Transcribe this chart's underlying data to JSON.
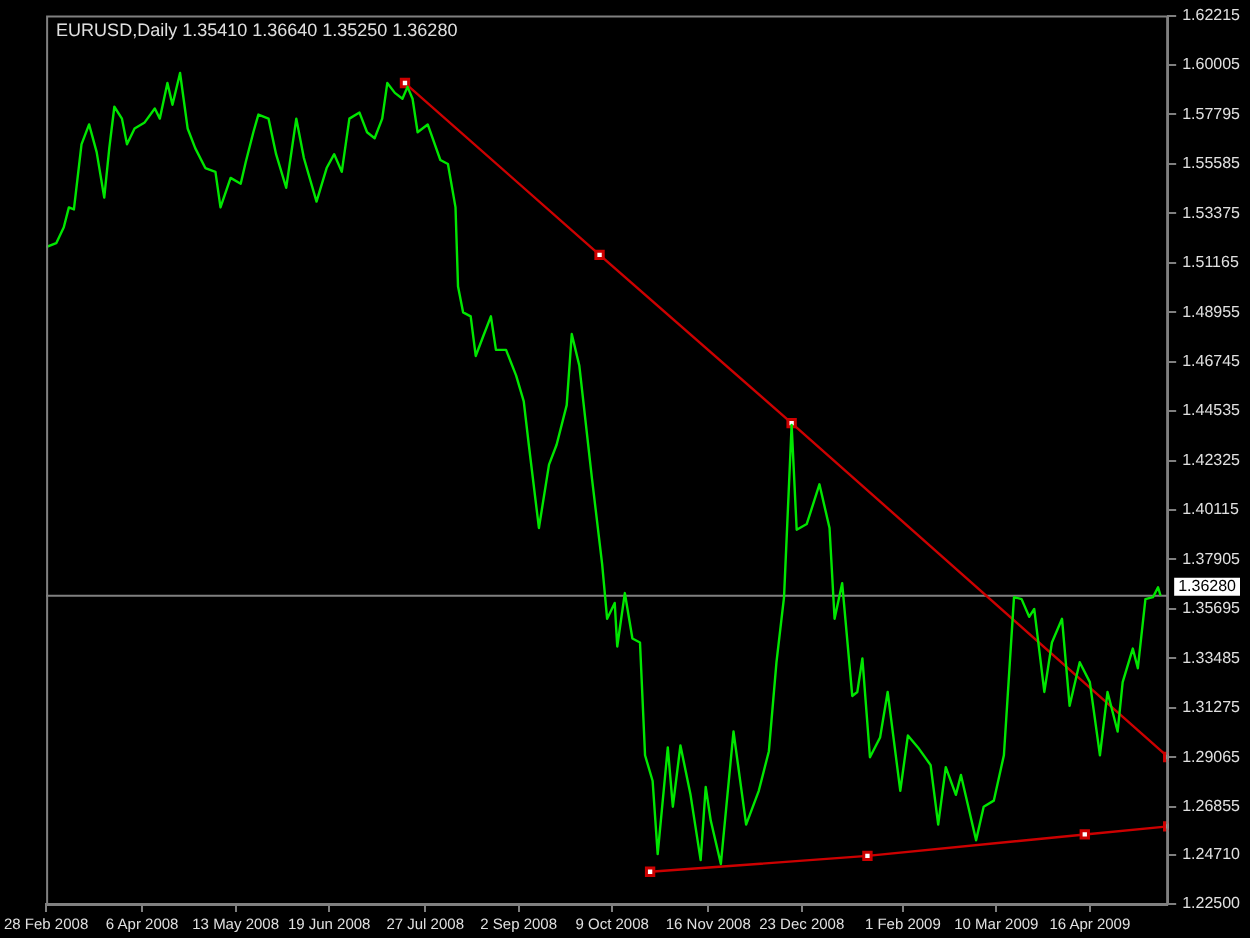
{
  "chart_data": {
    "type": "line",
    "title": "EURUSD,Daily 1.35410 1.36640 1.35250 1.36280",
    "grid": false,
    "legend": false,
    "xlim": [
      "2008-02-28",
      "2009-05-17"
    ],
    "xticks": [
      {
        "value": "2008-02-28",
        "label": "28 Feb 2008"
      },
      {
        "value": "2008-04-06",
        "label": "6 Apr 2008"
      },
      {
        "value": "2008-05-13",
        "label": "13 May 2008"
      },
      {
        "value": "2008-06-19",
        "label": "19 Jun 2008"
      },
      {
        "value": "2008-07-27",
        "label": "27 Jul 2008"
      },
      {
        "value": "2008-09-02",
        "label": "2 Sep 2008"
      },
      {
        "value": "2008-10-09",
        "label": "9 Oct 2008"
      },
      {
        "value": "2008-11-16",
        "label": "16 Nov 2008"
      },
      {
        "value": "2008-12-23",
        "label": "23 Dec 2008"
      },
      {
        "value": "2009-02-01",
        "label": "1 Feb 2009"
      },
      {
        "value": "2009-03-10",
        "label": "10 Mar 2009"
      },
      {
        "value": "2009-04-16",
        "label": "16 Apr 2009"
      }
    ],
    "ylim": [
      1.225,
      1.62215
    ],
    "yticks": [
      {
        "value": 1.225,
        "label": "1.22500"
      },
      {
        "value": 1.2471,
        "label": "1.24710"
      },
      1.26855,
      1.29065,
      1.31275,
      1.33485,
      1.35695,
      1.37905,
      1.40115,
      1.42325,
      1.44535,
      1.46745,
      1.48955,
      1.51165,
      1.53375,
      1.55585,
      1.57795,
      1.60005,
      1.62215
    ],
    "ref_lines": [
      {
        "axis": "y",
        "value": 1.3628,
        "label": "1.36280",
        "color": "#808080"
      }
    ],
    "series": [
      {
        "color": "#00e600",
        "marker": "none",
        "x": [
          "2008-02-28",
          "2008-03-03",
          "2008-03-06",
          "2008-03-08",
          "2008-03-10",
          "2008-03-13",
          "2008-03-16",
          "2008-03-19",
          "2008-03-22",
          "2008-03-24",
          "2008-03-26",
          "2008-03-29",
          "2008-03-31",
          "2008-04-03",
          "2008-04-07",
          "2008-04-11",
          "2008-04-13",
          "2008-04-16",
          "2008-04-18",
          "2008-04-21",
          "2008-04-24",
          "2008-04-27",
          "2008-05-01",
          "2008-05-05",
          "2008-05-07",
          "2008-05-11",
          "2008-05-15",
          "2008-05-17",
          "2008-05-20",
          "2008-05-22",
          "2008-05-26",
          "2008-05-29",
          "2008-06-02",
          "2008-06-06",
          "2008-06-09",
          "2008-06-14",
          "2008-06-18",
          "2008-06-21",
          "2008-06-24",
          "2008-06-27",
          "2008-07-01",
          "2008-07-04",
          "2008-07-07",
          "2008-07-10",
          "2008-07-12",
          "2008-07-15",
          "2008-07-18",
          "2008-07-20",
          "2008-07-22",
          "2008-07-24",
          "2008-07-28",
          "2008-08-02",
          "2008-08-05",
          "2008-08-08",
          "2008-08-09",
          "2008-08-11",
          "2008-08-14",
          "2008-08-16",
          "2008-08-19",
          "2008-08-22",
          "2008-08-24",
          "2008-08-28",
          "2008-09-01",
          "2008-09-04",
          "2008-09-06",
          "2008-09-10",
          "2008-09-14",
          "2008-09-17",
          "2008-09-21",
          "2008-09-23",
          "2008-09-26",
          "2008-10-01",
          "2008-10-05",
          "2008-10-07",
          "2008-10-10",
          "2008-10-11",
          "2008-10-14",
          "2008-10-17",
          "2008-10-20",
          "2008-10-22",
          "2008-10-25",
          "2008-10-27",
          "2008-10-31",
          "2008-11-02",
          "2008-11-05",
          "2008-11-09",
          "2008-11-13",
          "2008-11-15",
          "2008-11-17",
          "2008-11-21",
          "2008-11-26",
          "2008-12-01",
          "2008-12-06",
          "2008-12-10",
          "2008-12-13",
          "2008-12-16",
          "2008-12-19",
          "2008-12-21",
          "2008-12-25",
          "2008-12-30",
          "2009-01-03",
          "2009-01-05",
          "2009-01-08",
          "2009-01-12",
          "2009-01-14",
          "2009-01-16",
          "2009-01-19",
          "2009-01-23",
          "2009-01-26",
          "2009-01-31",
          "2009-02-03",
          "2009-02-07",
          "2009-02-12",
          "2009-02-15",
          "2009-02-18",
          "2009-02-22",
          "2009-02-24",
          "2009-03-02",
          "2009-03-05",
          "2009-03-09",
          "2009-03-13",
          "2009-03-17",
          "2009-03-20",
          "2009-03-23",
          "2009-03-25",
          "2009-03-29",
          "2009-04-01",
          "2009-04-05",
          "2009-04-08",
          "2009-04-12",
          "2009-04-16",
          "2009-04-20",
          "2009-04-23",
          "2009-04-27",
          "2009-04-29",
          "2009-05-03",
          "2009-05-05",
          "2009-05-08",
          "2009-05-11",
          "2009-05-13",
          "2009-05-14"
        ],
        "values": [
          1.5187,
          1.5204,
          1.5275,
          1.5364,
          1.5355,
          1.5646,
          1.5735,
          1.5611,
          1.5408,
          1.5629,
          1.5814,
          1.5761,
          1.5646,
          1.5717,
          1.5744,
          1.5806,
          1.5761,
          1.592,
          1.5823,
          1.5965,
          1.5717,
          1.5629,
          1.554,
          1.5523,
          1.5364,
          1.5496,
          1.547,
          1.5567,
          1.57,
          1.5779,
          1.5761,
          1.5602,
          1.5452,
          1.5761,
          1.5585,
          1.539,
          1.554,
          1.5602,
          1.5523,
          1.5761,
          1.5788,
          1.57,
          1.5673,
          1.5761,
          1.592,
          1.5876,
          1.585,
          1.5903,
          1.585,
          1.57,
          1.5735,
          1.5576,
          1.5558,
          1.5364,
          1.501,
          1.4895,
          1.4877,
          1.47,
          1.4789,
          1.4877,
          1.4727,
          1.4727,
          1.4612,
          1.4497,
          1.4303,
          1.3931,
          1.4214,
          1.4303,
          1.448,
          1.4798,
          1.4656,
          1.4152,
          1.3772,
          1.3525,
          1.3596,
          1.3401,
          1.364,
          1.3437,
          1.3419,
          1.2915,
          1.28,
          1.2473,
          1.295,
          1.2685,
          1.2959,
          1.2738,
          1.2446,
          1.2773,
          1.2623,
          1.2429,
          1.3021,
          1.2605,
          1.2756,
          1.2933,
          1.333,
          1.3622,
          1.4391,
          1.3923,
          1.3949,
          1.4126,
          1.3931,
          1.3525,
          1.3684,
          1.318,
          1.3198,
          1.3348,
          1.2906,
          1.2994,
          1.3198,
          1.2756,
          1.3003,
          1.295,
          1.2871,
          1.2605,
          1.2862,
          1.2738,
          1.2827,
          1.2535,
          1.2685,
          1.2712,
          1.2915,
          1.3622,
          1.3613,
          1.3534,
          1.3569,
          1.3198,
          1.3419,
          1.3525,
          1.3136,
          1.3331,
          1.3242,
          1.2915,
          1.3198,
          1.3021,
          1.3242,
          1.3392,
          1.3304,
          1.3613,
          1.3622,
          1.3666,
          1.3628
        ]
      },
      {
        "color": "#cc0000",
        "marker": "square",
        "x": [
          "2008-07-19",
          "2008-10-04",
          "2008-12-19",
          "2009-05-17"
        ],
        "values": [
          1.592,
          1.5152,
          1.44,
          1.2907
        ]
      },
      {
        "color": "#cc0000",
        "marker": "square",
        "x": [
          "2008-10-24",
          "2009-01-18",
          "2009-04-14",
          "2009-05-17"
        ],
        "values": [
          1.2394,
          1.2465,
          1.2561,
          1.2597
        ]
      }
    ]
  }
}
